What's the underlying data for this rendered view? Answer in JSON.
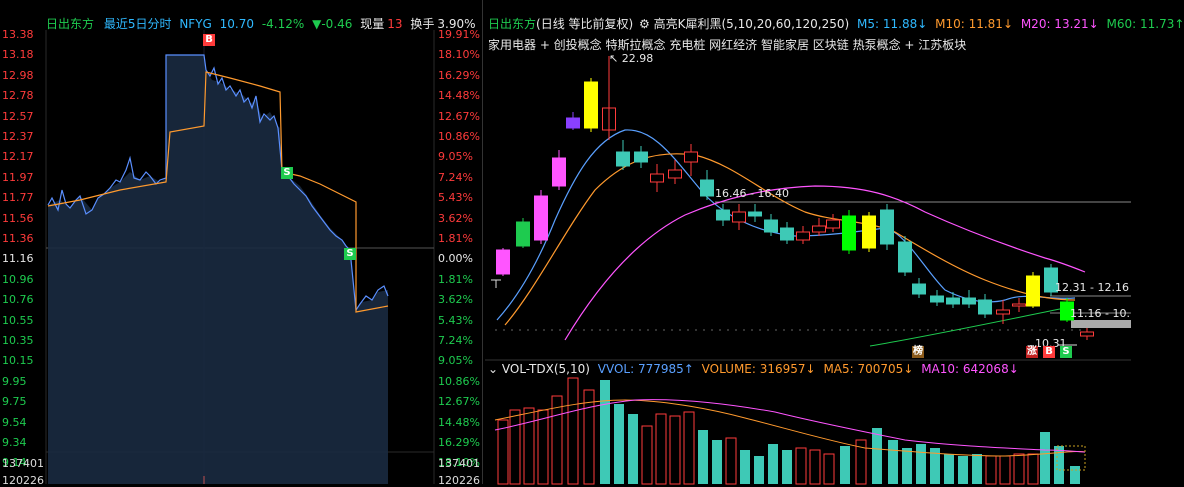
{
  "left": {
    "stock_name": "日出东方",
    "chart_title": "最近5日分时",
    "code": "NFYG",
    "price": "10.70",
    "change_pct": "-4.12%",
    "change_abs": "▼-0.46",
    "volume_label": "现量",
    "volume_value": "13",
    "turnover_label": "换手",
    "turnover_value": "3.90%",
    "price_ticks": [
      "13.38",
      "13.18",
      "12.98",
      "12.78",
      "12.57",
      "12.37",
      "12.17",
      "11.97",
      "11.77",
      "11.56",
      "11.36",
      "11.16",
      "10.96",
      "10.76",
      "10.55",
      "10.35",
      "10.15",
      "9.95",
      "9.75",
      "9.54",
      "9.34",
      "9.14"
    ],
    "pct_ticks": [
      "19.91%",
      "18.10%",
      "16.29%",
      "14.48%",
      "12.67%",
      "10.86%",
      "9.05%",
      "7.24%",
      "5.43%",
      "3.62%",
      "1.81%",
      "0.00%",
      "1.81%",
      "3.62%",
      "5.43%",
      "7.24%",
      "9.05%",
      "10.86%",
      "12.67%",
      "14.48%",
      "16.29%",
      "18.10%"
    ],
    "vol_ticks": [
      "137401",
      "120226"
    ],
    "vol_ticks_right": [
      "137401",
      "120226"
    ],
    "marker_buy": "B",
    "marker_sell": "S"
  },
  "right": {
    "stock_name": "日出东方",
    "period": "(日线 等比前复权)",
    "indicator": "高亮K犀利黑(5,10,20,60,120,250)",
    "ma5_label": "M5: 11.88↓",
    "ma10_label": "M10: 11.81↓",
    "m20_label": "M20: 13.21↓",
    "m60_label": "M60: 11.73↑",
    "concepts": "家用电器 + 创投概念 特斯拉概念 充电桩 网红经济 智能家居 区块链 热泵概念 + 江苏板块",
    "high_label": "22.98",
    "mid_label": "16.46 - 16.40",
    "range_label1": "12.31 - 12.16",
    "range_label2": "11.16 - 10.",
    "low_label": "10.31",
    "badge_bang": "榜",
    "badge_zhang": "涨",
    "badge_b": "B",
    "badge_s": "S",
    "vol_indicator": "VOL-TDX(5,10)",
    "vvol": "VVOL: 777985↑",
    "volume": "VOLUME: 316957↓",
    "ma5": "MA5: 700705↓",
    "ma10": "MA10: 642068↓"
  },
  "colors": {
    "up": "#ff3b3b",
    "down": "#1ecb4f",
    "cyan": "#2fb9ff",
    "orange": "#ff9a2e",
    "magenta": "#ff55ff",
    "yellow": "#ffff00",
    "bg": "#000000"
  }
}
